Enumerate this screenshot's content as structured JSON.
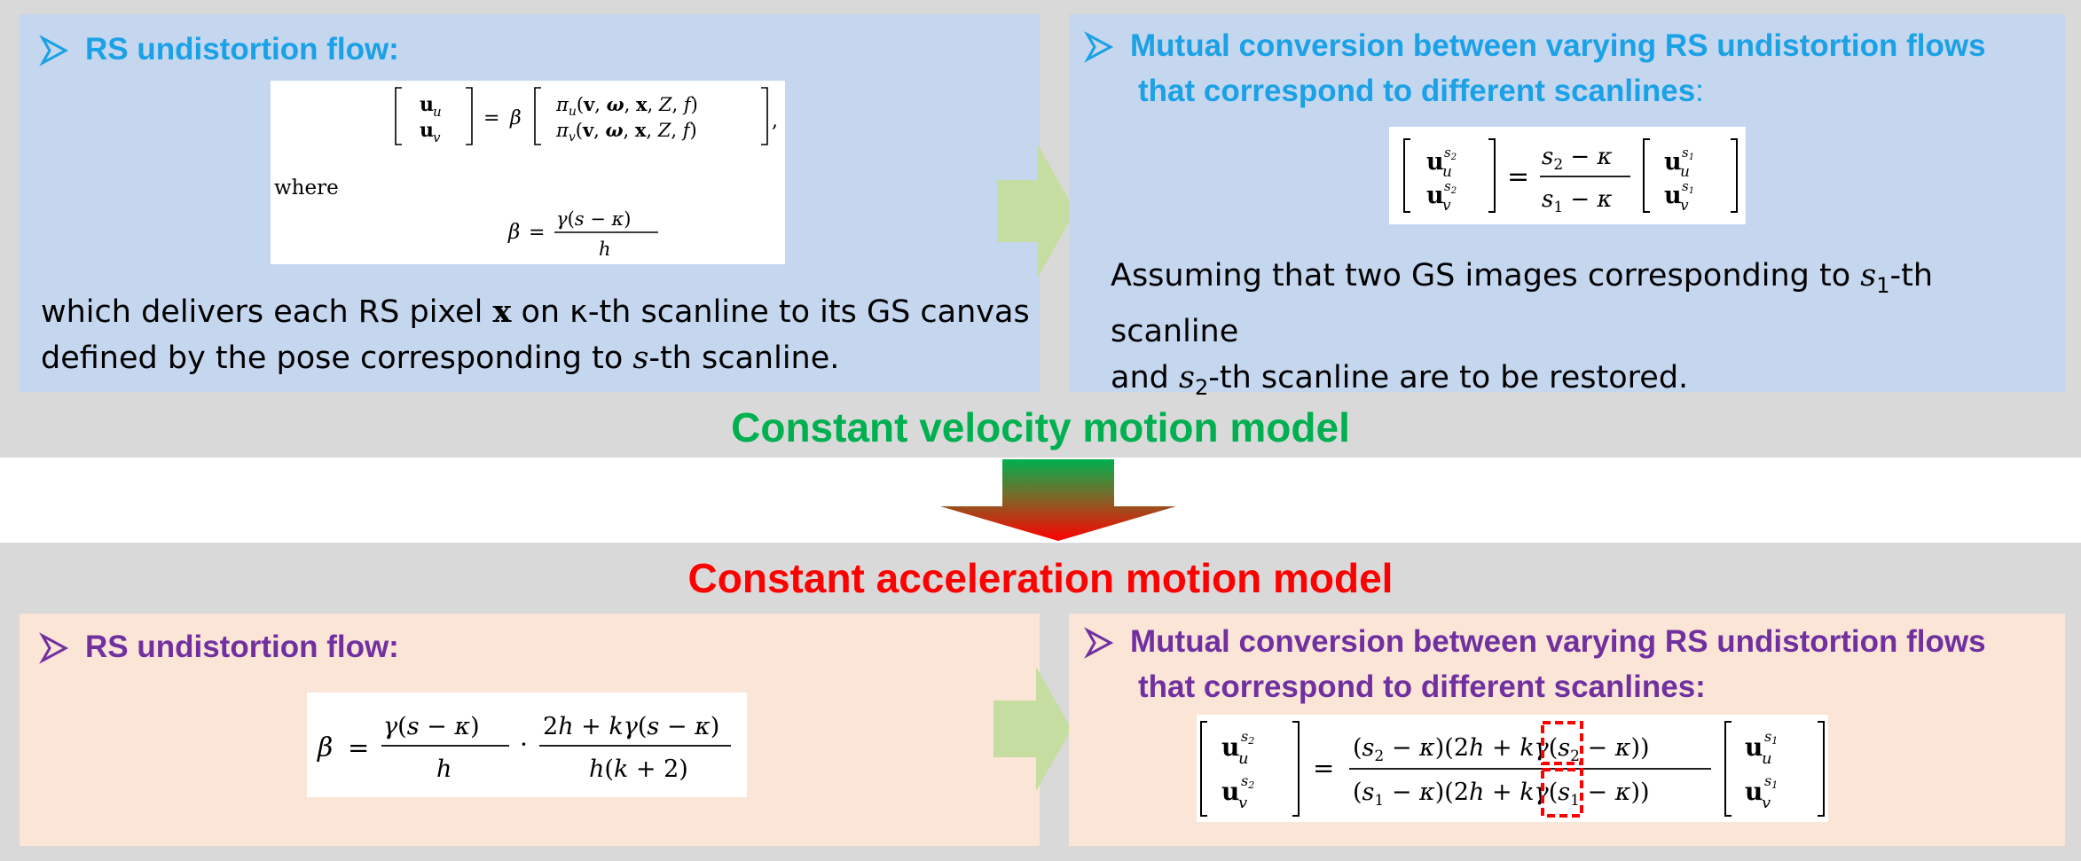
{
  "top": {
    "model_title": "Constant velocity motion model",
    "left_panel": {
      "heading": "RS undistortion flow:",
      "where_label": "where",
      "description_line1_pre": "which delivers each RS pixel ",
      "description_line1_var": "x",
      "description_line1_mid": " on ",
      "description_line1_kappa": "κ",
      "description_line1_post": "-th scanline to its GS canvas",
      "description_line2_pre": "defined by the pose corresponding to ",
      "description_line2_var": "s",
      "description_line2_post": "-th scanline."
    },
    "right_panel": {
      "heading_line1": "Mutual conversion between varying RS undistortion flows",
      "heading_line2": "that correspond to different scanlines",
      "heading_colon": ":",
      "description_line1_pre": "Assuming that two GS images corresponding to ",
      "description_line1_var": "s",
      "description_line1_sub": "1",
      "description_line1_post": "-th scanline",
      "description_line2_pre": "and ",
      "description_line2_var": "s",
      "description_line2_sub": "2",
      "description_line2_post": "-th scanline are to be restored."
    }
  },
  "bottom": {
    "model_title": "Constant acceleration motion model",
    "left_panel": {
      "heading": "RS undistortion flow:"
    },
    "right_panel": {
      "heading_line1": "Mutual conversion between varying RS undistortion flows",
      "heading_line2": "that correspond to different scanlines:"
    }
  },
  "colors": {
    "band_gray": "#d9d9d9",
    "blue_panel": "#c5d6ef",
    "peach_panel": "#fbe5d6",
    "cyan_heading": "#1ba1e6",
    "purple_heading": "#7030a0",
    "green_title": "#00b050",
    "red_title": "#ff0000",
    "flow_arrow": "#c5dda0",
    "highlight_box": "#ff0000"
  },
  "icons": {
    "bullet": "arrowhead-bullet-icon",
    "flow_arrow": "right-arrow-icon",
    "transition_arrow": "down-arrow-icon"
  }
}
